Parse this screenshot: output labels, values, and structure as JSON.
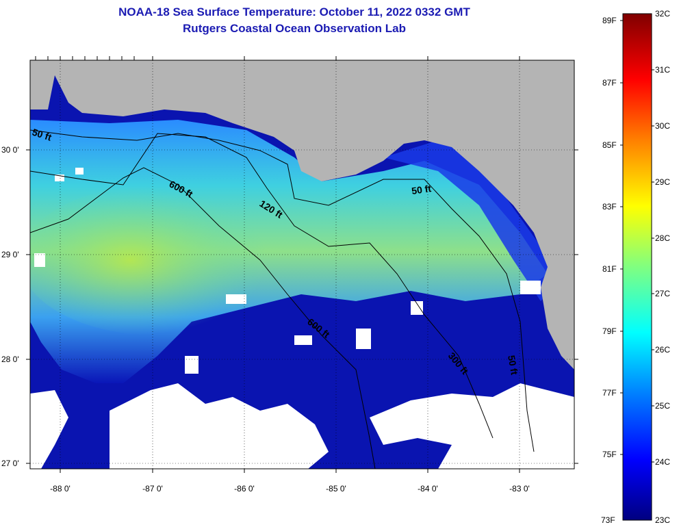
{
  "title": {
    "line1": "NOAA-18 Sea Surface Temperature:  October 11, 2022 0332 GMT",
    "line2": "Rutgers Coastal Ocean Observation Lab"
  },
  "map": {
    "region": "Northeastern Gulf of Mexico / Florida Panhandle",
    "land_color": "#b4b4b4",
    "cloud_mask_color": "#ffffff",
    "lon_labels": [
      "-88 0'",
      "-87 0'",
      "-86 0'",
      "-85 0'",
      "-84 0'",
      "-83 0'"
    ],
    "lat_labels": [
      "30 0'",
      "29 0'",
      "28 0'",
      "27 0'"
    ],
    "contour_labels": [
      "50 ft",
      "600 ft",
      "120 ft",
      "50 ft",
      "600 ft",
      "300 ft",
      "50 ft"
    ]
  },
  "colorbar": {
    "fahrenheit_labels": [
      "89F",
      "87F",
      "85F",
      "83F",
      "81F",
      "79F",
      "77F",
      "75F",
      "73F"
    ],
    "celsius_labels": [
      "32C",
      "31C",
      "30C",
      "29C",
      "28C",
      "27C",
      "26C",
      "25C",
      "24C",
      "23C"
    ],
    "colors": [
      "#000080",
      "#0000ff",
      "#0080ff",
      "#00ffff",
      "#80ff80",
      "#ffff00",
      "#ff8000",
      "#ff0000",
      "#800000"
    ]
  }
}
